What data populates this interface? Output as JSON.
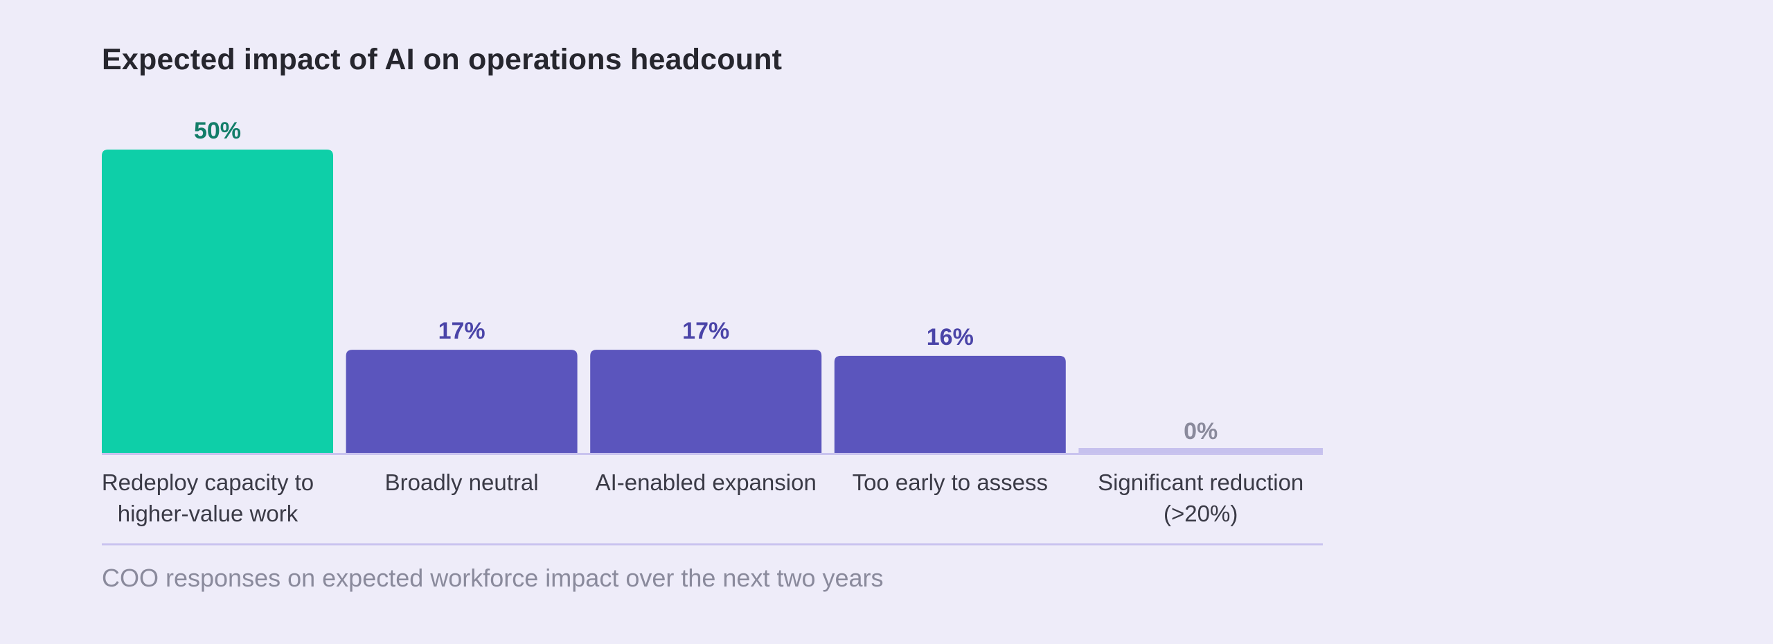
{
  "chart_data": {
    "type": "bar",
    "title": "Expected impact of AI on operations headcount",
    "categories": [
      "Redeploy capacity to higher-value work",
      "Broadly neutral",
      "AI-enabled expansion",
      "Too early to assess",
      "Significant reduction (>20%)"
    ],
    "category_lines": [
      [
        "Redeploy capacity to",
        "higher-value work"
      ],
      [
        "Broadly neutral"
      ],
      [
        "AI-enabled expansion"
      ],
      [
        "Too early to assess"
      ],
      [
        "Significant reduction",
        "(>20%)"
      ]
    ],
    "values": [
      50,
      17,
      17,
      16,
      0
    ],
    "value_labels": [
      "50%",
      "17%",
      "17%",
      "16%",
      "0%"
    ],
    "unit": "%",
    "ylim": [
      0,
      50
    ],
    "xlabel": "",
    "ylabel": "",
    "grid": false,
    "legend": "none",
    "caption": "COO responses on expected workforce impact over the next two years"
  },
  "colors": {
    "background": "#eeecf9",
    "highlight_bar": "#0ecfa8",
    "highlight_label": "#127d68",
    "bar": "#5b55bd",
    "bar_label": "#4a44a8",
    "zero_bar": "#c6c1ee",
    "zero_label": "#8a8a9c",
    "category_text": "#3a3a46",
    "axis": "#c9c3ef"
  }
}
